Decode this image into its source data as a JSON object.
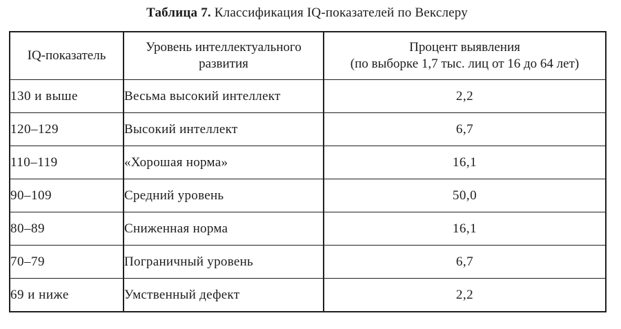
{
  "caption": {
    "label": "Таблица 7.",
    "text": "Классификация IQ-показателей по Векслеру"
  },
  "table": {
    "headers": {
      "iq": "IQ-показатель",
      "level": "Уровень интеллектуального развития",
      "percent_line1": "Процент выявления",
      "percent_line2": "(по выборке 1,7 тыс. лиц от 16 до 64 лет)"
    },
    "rows": [
      {
        "iq": "130 и выше",
        "level": "Весьма высокий интеллект",
        "percent": "2,2"
      },
      {
        "iq": "120–129",
        "level": "Высокий интеллект",
        "percent": "6,7"
      },
      {
        "iq": "110–119",
        "level": "«Хорошая норма»",
        "percent": "16,1"
      },
      {
        "iq": "90–109",
        "level": "Средний уровень",
        "percent": "50,0"
      },
      {
        "iq": "80–89",
        "level": "Сниженная норма",
        "percent": "16,1"
      },
      {
        "iq": "70–79",
        "level": "Пограничный уровень",
        "percent": "6,7"
      },
      {
        "iq": "69 и ниже",
        "level": "Умственный дефект",
        "percent": "2,2"
      }
    ]
  },
  "chart_data": {
    "type": "table",
    "title": "Таблица 7. Классификация IQ-показателей по Векслеру",
    "columns": [
      "IQ-показатель",
      "Уровень интеллектуального развития",
      "Процент выявления (по выборке 1,7 тыс. лиц от 16 до 64 лет)"
    ],
    "categories": [
      "130 и выше",
      "120–129",
      "110–119",
      "90–109",
      "80–89",
      "70–79",
      "69 и ниже"
    ],
    "levels": [
      "Весьма высокий интеллект",
      "Высокий интеллект",
      "«Хорошая норма»",
      "Средний уровень",
      "Сниженная норма",
      "Пограничный уровень",
      "Умственный дефект"
    ],
    "values": [
      2.2,
      6.7,
      16.1,
      50.0,
      16.1,
      6.7,
      2.2
    ]
  }
}
